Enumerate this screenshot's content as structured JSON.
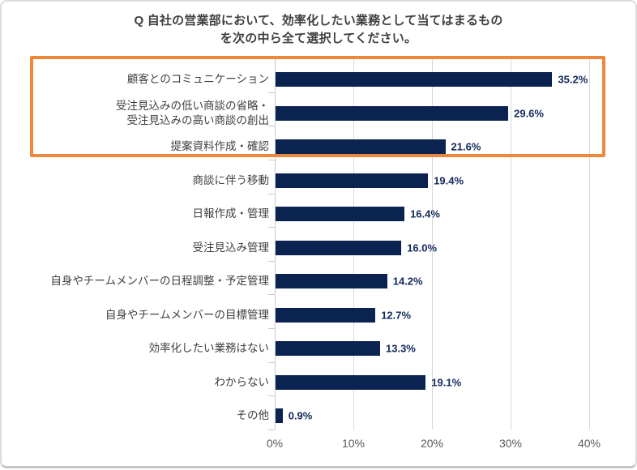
{
  "card": {
    "title_line1": "Q 自社の営業部において、効率化したい業務として当てはまるもの",
    "title_line2": "を次の中ら全て選択してください。"
  },
  "chart_data": {
    "type": "bar",
    "orientation": "horizontal",
    "title": "Q 自社の営業部において、効率化したい業務として当てはまるもの を次の中ら全て選択してください。",
    "categories": [
      "顧客とのコミュニケーション",
      "受注見込みの低い商談の省略・\n受注見込みの高い商談の創出",
      "提案資料作成・確認",
      "商談に伴う移動",
      "日報作成・管理",
      "受注見込み管理",
      "自身やチームメンバーの日程調整・予定管理",
      "自身やチームメンバーの目標管理",
      "効率化したい業務はない",
      "わからない",
      "その他"
    ],
    "values": [
      35.2,
      29.6,
      21.6,
      19.4,
      16.4,
      16.0,
      14.2,
      12.7,
      13.3,
      19.1,
      0.9
    ],
    "value_labels": [
      "35.2%",
      "29.6%",
      "21.6%",
      "19.4%",
      "16.4%",
      "16.0%",
      "14.2%",
      "12.7%",
      "13.3%",
      "19.1%",
      "0.9%"
    ],
    "x_tick_labels": [
      "0%",
      "10%",
      "20%",
      "30%",
      "40%"
    ],
    "xlim": [
      0,
      40
    ],
    "grid": true,
    "legend": "none",
    "bar_color": "#0A2350",
    "value_label_color": "#13295C",
    "grid_color": "#D9D9D9",
    "highlight": {
      "rows": [
        0,
        1,
        2
      ],
      "color": "#ED873B",
      "meaning": "top-3-highlighted"
    }
  }
}
